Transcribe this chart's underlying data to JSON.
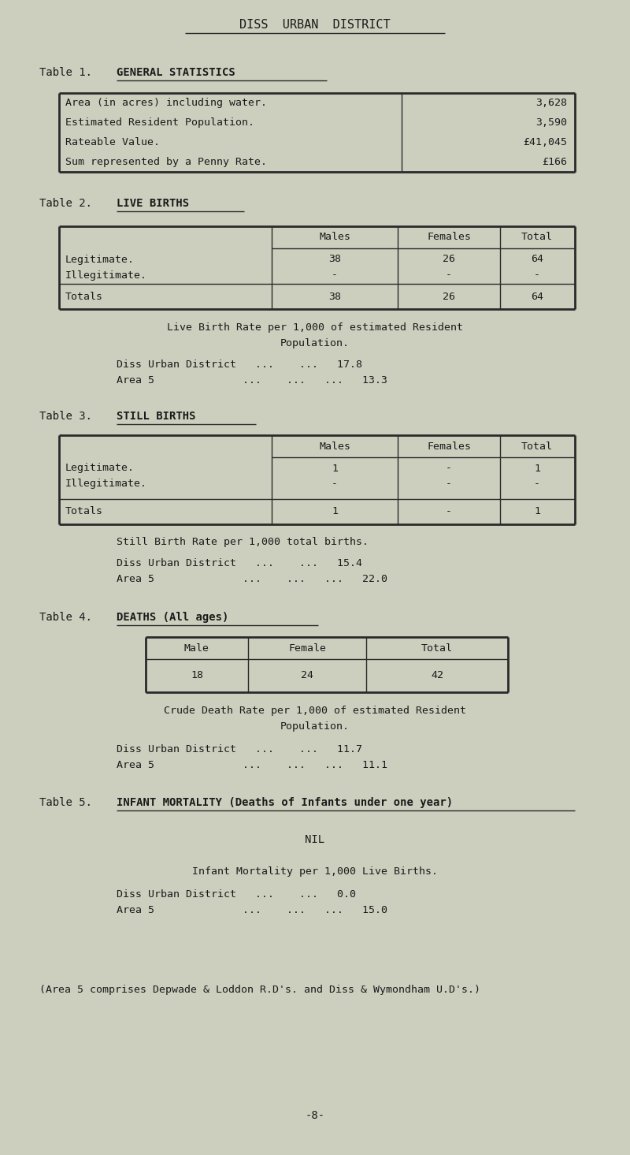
{
  "bg_color": "#cccfbe",
  "text_color": "#1a1a1a",
  "page_title": "DISS  URBAN  DISTRICT",
  "table1_rows": [
    [
      "Area (in acres) including water.",
      "3,628"
    ],
    [
      "Estimated Resident Population.",
      "3,590"
    ],
    [
      "Rateable Value.",
      "£41,045"
    ],
    [
      "Sum represented by a Penny Rate.",
      "£166"
    ]
  ],
  "table2_col_headers": [
    "Males",
    "Females",
    "Total"
  ],
  "table2_rows": [
    [
      "Legitimate.",
      "38",
      "26",
      "64"
    ],
    [
      "Illegitimate.",
      "-",
      "-",
      "-"
    ],
    [
      "Totals",
      "38",
      "26",
      "64"
    ]
  ],
  "table3_col_headers": [
    "Males",
    "Females",
    "Total"
  ],
  "table3_rows": [
    [
      "Legitimate.",
      "1",
      "-",
      "1"
    ],
    [
      "Illegitimate.",
      "-",
      "-",
      "-"
    ],
    [
      "Totals",
      "1",
      "-",
      "1"
    ]
  ],
  "table4_col_headers": [
    "Male",
    "Female",
    "Total"
  ],
  "table4_rows": [
    [
      "18",
      "24",
      "42"
    ]
  ],
  "footer_note": "(Area 5 comprises Depwade & Loddon R.D's. and Diss & Wymondham U.D's.)",
  "page_number": "-8-"
}
